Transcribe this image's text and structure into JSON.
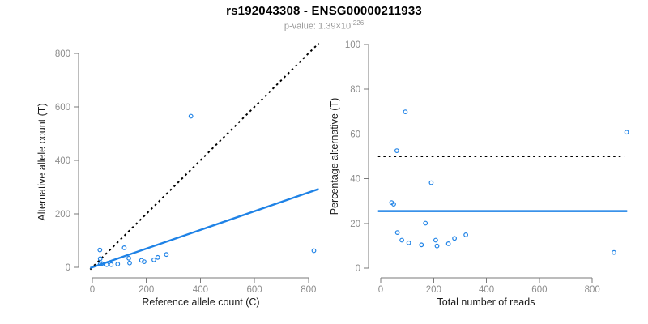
{
  "header": {
    "title": "rs192043308 - ENSG00000211933",
    "pvalue_label": "p-value: 1.39×10",
    "pvalue_exponent": "-226"
  },
  "colors": {
    "accent_blue": "#1E82E6",
    "dotted_black": "#000000",
    "axis_stroke": "#7a7a7a",
    "tick_label": "#8c8c8c"
  },
  "chart_data": [
    {
      "type": "scatter",
      "panel": "left",
      "xlabel": "Reference allele count (C)",
      "ylabel": "Alternative allele count (T)",
      "xticks": [
        0,
        200,
        400,
        600,
        800
      ],
      "yticks": [
        0,
        200,
        400,
        600,
        800
      ],
      "xlim": [
        -10,
        840
      ],
      "ylim": [
        -10,
        840
      ],
      "grid": false,
      "legend": "none",
      "point_style": "open-circle",
      "points": [
        [
          29,
          12
        ],
        [
          35,
          14
        ],
        [
          29,
          32
        ],
        [
          53,
          10
        ],
        [
          70,
          10
        ],
        [
          28,
          65
        ],
        [
          94,
          12
        ],
        [
          138,
          16
        ],
        [
          135,
          34
        ],
        [
          118,
          73
        ],
        [
          182,
          26
        ],
        [
          192,
          21
        ],
        [
          228,
          28
        ],
        [
          242,
          37
        ],
        [
          274,
          48
        ],
        [
          365,
          565
        ],
        [
          820,
          62
        ]
      ],
      "lines": [
        {
          "name": "identity-line",
          "style": "dotted",
          "color": "#000000",
          "from": [
            -8,
            -8
          ],
          "to": [
            838,
            838
          ]
        },
        {
          "name": "fit-line",
          "style": "solid",
          "color": "#1E82E6",
          "slope": 0.35,
          "from": [
            -8,
            -2.8
          ],
          "to": [
            838,
            293
          ]
        }
      ]
    },
    {
      "type": "scatter",
      "panel": "right",
      "xlabel": "Total number of reads",
      "ylabel": "Percentage alternative (T)",
      "xticks": [
        0,
        200,
        400,
        600,
        800
      ],
      "yticks": [
        0,
        20,
        40,
        60,
        80,
        100
      ],
      "xlim": [
        -10,
        935
      ],
      "ylim": [
        0,
        100
      ],
      "grid": false,
      "legend": "none",
      "point_style": "open-circle",
      "points": [
        [
          41,
          29.3
        ],
        [
          49,
          28.6
        ],
        [
          61,
          52.5
        ],
        [
          63,
          15.9
        ],
        [
          80,
          12.5
        ],
        [
          93,
          69.9
        ],
        [
          106,
          11.3
        ],
        [
          154,
          10.4
        ],
        [
          169,
          20.1
        ],
        [
          191,
          38.2
        ],
        [
          208,
          12.5
        ],
        [
          213,
          9.9
        ],
        [
          256,
          10.9
        ],
        [
          279,
          13.3
        ],
        [
          322,
          14.9
        ],
        [
          882,
          7.0
        ],
        [
          930,
          60.8
        ]
      ],
      "lines": [
        {
          "name": "expected-50pct-line",
          "style": "dotted",
          "color": "#000000",
          "from": [
            -10,
            50
          ],
          "to": [
            920,
            50
          ]
        },
        {
          "name": "mean-pct-line",
          "style": "solid",
          "color": "#1E82E6",
          "from": [
            -10,
            25.5
          ],
          "to": [
            932,
            25.5
          ]
        }
      ]
    }
  ]
}
